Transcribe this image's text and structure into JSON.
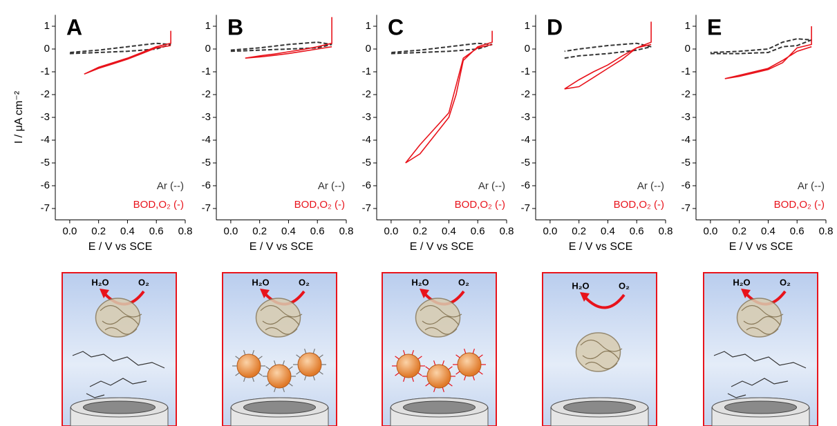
{
  "chart_data": [
    {
      "type": "line",
      "panel": "A",
      "y_label": "I / μA cm⁻²",
      "x_label": "E / V vs SCE",
      "xlim": [
        -0.1,
        0.8
      ],
      "xticks": [
        {
          "value": 0,
          "label": "0.0"
        },
        0.2,
        0.4,
        0.6,
        0.8
      ],
      "ylim": [
        -7.5,
        1.5
      ],
      "yticks": [
        -7,
        -6,
        -5,
        -4,
        -3,
        -2,
        -1,
        0,
        1
      ],
      "series": [
        {
          "name": "Ar (--)",
          "color": "#333333",
          "dashed": true,
          "x": [
            0,
            0.2,
            0.4,
            0.6,
            0.7,
            0.6,
            0.4,
            0.2,
            0
          ],
          "values": [
            -0.2,
            -0.15,
            -0.1,
            0,
            0.2,
            0.25,
            0.1,
            -0.05,
            -0.15
          ]
        },
        {
          "name": "BOD,O₂ (-)",
          "color": "#e8131b",
          "dashed": false,
          "x": [
            0.7,
            0.6,
            0.5,
            0.4,
            0.3,
            0.2,
            0.1,
            0.2,
            0.3,
            0.4,
            0.5,
            0.6,
            0.7,
            0.7
          ],
          "values": [
            0.15,
            0.05,
            -0.2,
            -0.45,
            -0.65,
            -0.85,
            -1.1,
            -0.8,
            -0.6,
            -0.4,
            -0.15,
            0.1,
            0.25,
            0.8
          ]
        }
      ]
    },
    {
      "type": "line",
      "panel": "B",
      "x_label": "E / V vs SCE",
      "xlim": [
        -0.1,
        0.8
      ],
      "xticks": [
        {
          "value": 0,
          "label": "0.0"
        },
        0.2,
        0.4,
        0.6,
        0.8
      ],
      "ylim": [
        -7.5,
        1.5
      ],
      "yticks": [
        -7,
        -6,
        -5,
        -4,
        -3,
        -2,
        -1,
        0,
        1
      ],
      "series": [
        {
          "name": "Ar (--)",
          "color": "#333333",
          "dashed": true,
          "x": [
            0,
            0.2,
            0.4,
            0.6,
            0.7,
            0.6,
            0.4,
            0.2,
            0
          ],
          "values": [
            -0.1,
            -0.05,
            0,
            0.05,
            0.2,
            0.3,
            0.2,
            0.05,
            -0.05
          ]
        },
        {
          "name": "BOD,O₂ (-)",
          "color": "#e8131b",
          "dashed": false,
          "x": [
            0.7,
            0.6,
            0.5,
            0.4,
            0.3,
            0.2,
            0.1,
            0.2,
            0.3,
            0.4,
            0.5,
            0.6,
            0.7,
            0.7
          ],
          "values": [
            0.1,
            0,
            -0.1,
            -0.2,
            -0.28,
            -0.35,
            -0.4,
            -0.3,
            -0.22,
            -0.12,
            -0.02,
            0.1,
            0.25,
            1.4
          ]
        }
      ]
    },
    {
      "type": "line",
      "panel": "C",
      "x_label": "E / V vs SCE",
      "xlim": [
        -0.1,
        0.8
      ],
      "xticks": [
        {
          "value": 0,
          "label": "0.0"
        },
        0.2,
        0.4,
        0.6,
        0.8
      ],
      "ylim": [
        -7.5,
        1.5
      ],
      "yticks": [
        -7,
        -6,
        -5,
        -4,
        -3,
        -2,
        -1,
        0,
        1
      ],
      "series": [
        {
          "name": "Ar (--)",
          "color": "#333333",
          "dashed": true,
          "x": [
            0,
            0.2,
            0.4,
            0.6,
            0.7,
            0.6,
            0.4,
            0.2,
            0
          ],
          "values": [
            -0.2,
            -0.15,
            -0.1,
            0,
            0.2,
            0.25,
            0.1,
            -0.05,
            -0.15
          ]
        },
        {
          "name": "BOD,O₂ (-)",
          "color": "#e8131b",
          "dashed": false,
          "x": [
            0.7,
            0.6,
            0.5,
            0.45,
            0.4,
            0.3,
            0.2,
            0.1,
            0.2,
            0.3,
            0.4,
            0.45,
            0.5,
            0.6,
            0.7,
            0.7
          ],
          "values": [
            0.2,
            0.05,
            -0.4,
            -1.6,
            -2.8,
            -3.5,
            -4.2,
            -5.0,
            -4.6,
            -3.8,
            -3.0,
            -2.0,
            -0.5,
            0.1,
            0.3,
            0.8
          ]
        }
      ]
    },
    {
      "type": "line",
      "panel": "D",
      "x_label": "E / V vs SCE",
      "xlim": [
        -0.1,
        0.8
      ],
      "xticks": [
        {
          "value": 0,
          "label": "0.0"
        },
        0.2,
        0.4,
        0.6,
        0.8
      ],
      "ylim": [
        -7.5,
        1.5
      ],
      "yticks": [
        -7,
        -6,
        -5,
        -4,
        -3,
        -2,
        -1,
        0,
        1
      ],
      "series": [
        {
          "name": "Ar (--)",
          "color": "#333333",
          "dashed": true,
          "x": [
            0.1,
            0.2,
            0.4,
            0.6,
            0.7,
            0.6,
            0.4,
            0.2,
            0.1
          ],
          "values": [
            -0.4,
            -0.3,
            -0.2,
            -0.05,
            0.1,
            0.25,
            0.15,
            0,
            -0.1
          ]
        },
        {
          "name": "BOD,O₂ (-)",
          "color": "#e8131b",
          "dashed": false,
          "x": [
            0.7,
            0.6,
            0.5,
            0.4,
            0.3,
            0.2,
            0.1,
            0.2,
            0.3,
            0.4,
            0.5,
            0.6,
            0.7,
            0.7
          ],
          "values": [
            0.2,
            0.05,
            -0.3,
            -0.7,
            -1.0,
            -1.35,
            -1.75,
            -1.65,
            -1.25,
            -0.85,
            -0.45,
            0.05,
            0.3,
            1.2
          ]
        }
      ]
    },
    {
      "type": "line",
      "panel": "E",
      "x_label": "E / V vs SCE",
      "xlim": [
        -0.1,
        0.8
      ],
      "xticks": [
        {
          "value": 0,
          "label": "0.0"
        },
        0.2,
        0.4,
        0.6,
        0.8
      ],
      "ylim": [
        -7.5,
        1.5
      ],
      "yticks": [
        -7,
        -6,
        -5,
        -4,
        -3,
        -2,
        -1,
        0,
        1
      ],
      "series": [
        {
          "name": "Ar (--)",
          "color": "#333333",
          "dashed": true,
          "x": [
            0,
            0.2,
            0.4,
            0.5,
            0.6,
            0.7,
            0.6,
            0.5,
            0.4,
            0.2,
            0
          ],
          "values": [
            -0.2,
            -0.2,
            -0.15,
            0.1,
            0.15,
            0.4,
            0.45,
            0.3,
            0,
            -0.1,
            -0.15
          ]
        },
        {
          "name": "BOD,O₂ (-)",
          "color": "#e8131b",
          "dashed": false,
          "x": [
            0.7,
            0.6,
            0.5,
            0.4,
            0.3,
            0.2,
            0.1,
            0.2,
            0.3,
            0.4,
            0.5,
            0.6,
            0.7,
            0.7
          ],
          "values": [
            0.1,
            -0.1,
            -0.5,
            -0.85,
            -1.0,
            -1.15,
            -1.3,
            -1.2,
            -1.05,
            -0.9,
            -0.6,
            0.05,
            0.2,
            1.0
          ]
        }
      ]
    }
  ],
  "schematics": [
    {
      "product": "H₂O",
      "reactant": "O₂"
    },
    {
      "product": "H₂O",
      "reactant": "O₂"
    },
    {
      "product": "H₂O",
      "reactant": "O₂"
    },
    {
      "product": "H₂O",
      "reactant": "O₂"
    },
    {
      "product": "H₂O",
      "reactant": "O₂"
    }
  ]
}
